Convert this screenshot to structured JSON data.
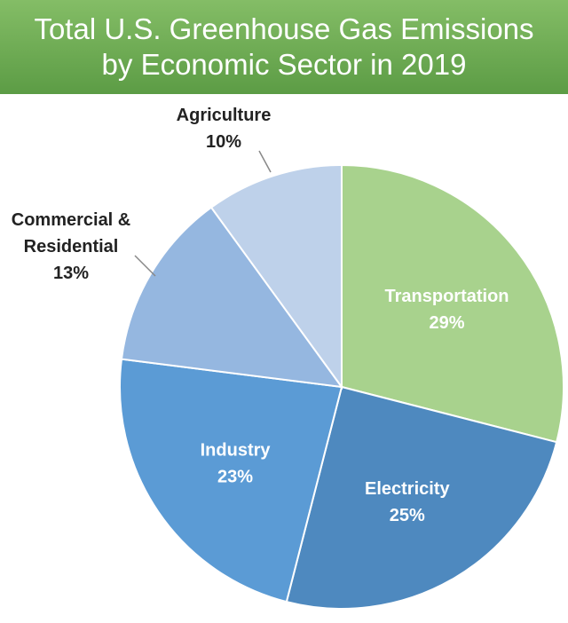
{
  "title_lines": [
    "Total U.S. Greenhouse Gas Emissions",
    "by Economic Sector in 2019"
  ],
  "colors": {
    "header_top": "#84bd66",
    "header_bottom": "#5c9c45",
    "inside_label": "#ffffff",
    "outside_label": "#222222",
    "leader_line": "#888888"
  },
  "chart_data": {
    "type": "pie",
    "title": "Total U.S. Greenhouse Gas Emissions by Economic Sector in 2019",
    "start": "12 o'clock, clockwise",
    "slices": [
      {
        "label": "Transportation",
        "value": 29,
        "display": "29%",
        "color": "#a8d28d",
        "label_position": "inside"
      },
      {
        "label": "Electricity",
        "value": 25,
        "display": "25%",
        "color": "#4e89bf",
        "label_position": "inside"
      },
      {
        "label": "Industry",
        "value": 23,
        "display": "23%",
        "color": "#5b9bd5",
        "label_position": "inside"
      },
      {
        "label": "Commercial & Residential",
        "label_lines": [
          "Commercial &",
          "Residential"
        ],
        "value": 13,
        "display": "13%",
        "color": "#95b7e0",
        "label_position": "outside"
      },
      {
        "label": "Agriculture",
        "value": 10,
        "display": "10%",
        "color": "#bed1ea",
        "label_position": "outside"
      }
    ]
  }
}
